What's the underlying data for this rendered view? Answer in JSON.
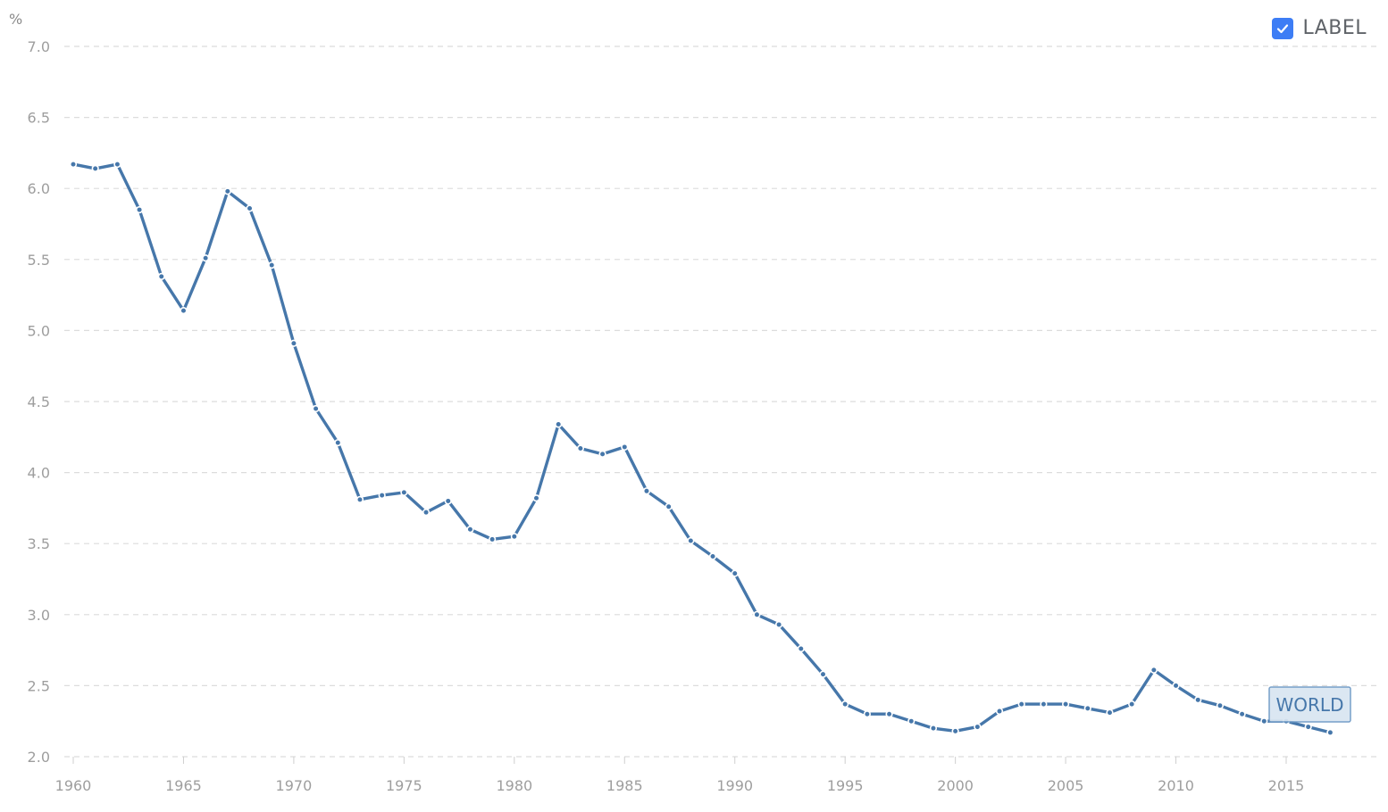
{
  "legend": {
    "label": "LABEL",
    "checked": true,
    "icon": "check-icon",
    "color": "#3d7df5"
  },
  "chart_data": {
    "type": "line",
    "unit_label": "%",
    "ylim": [
      2.0,
      7.0
    ],
    "yticks": [
      2.0,
      2.5,
      3.0,
      3.5,
      4.0,
      4.5,
      5.0,
      5.5,
      6.0,
      6.5,
      7.0
    ],
    "ytick_labels": [
      "2.0",
      "2.5",
      "3.0",
      "3.5",
      "4.0",
      "4.5",
      "5.0",
      "5.5",
      "6.0",
      "6.5",
      "7.0"
    ],
    "xlim": [
      1960,
      2019
    ],
    "xticks": [
      1960,
      1965,
      1970,
      1975,
      1980,
      1985,
      1990,
      1995,
      2000,
      2005,
      2010,
      2015
    ],
    "xtick_labels": [
      "1960",
      "1965",
      "1970",
      "1975",
      "1980",
      "1985",
      "1990",
      "1995",
      "2000",
      "2005",
      "2010",
      "2015"
    ],
    "grid": true,
    "legend_position": "top-right",
    "series": [
      {
        "name": "WORLD",
        "color": "#4677aa",
        "x": [
          1960,
          1961,
          1962,
          1963,
          1964,
          1965,
          1966,
          1967,
          1968,
          1969,
          1970,
          1971,
          1972,
          1973,
          1974,
          1975,
          1976,
          1977,
          1978,
          1979,
          1980,
          1981,
          1982,
          1983,
          1984,
          1985,
          1986,
          1987,
          1988,
          1989,
          1990,
          1991,
          1992,
          1993,
          1994,
          1995,
          1996,
          1997,
          1998,
          1999,
          2000,
          2001,
          2002,
          2003,
          2004,
          2005,
          2006,
          2007,
          2008,
          2009,
          2010,
          2011,
          2012,
          2013,
          2014,
          2015,
          2016,
          2017
        ],
        "values": [
          6.17,
          6.14,
          6.17,
          5.85,
          5.38,
          5.14,
          5.51,
          5.98,
          5.86,
          5.46,
          4.91,
          4.45,
          4.21,
          3.81,
          3.84,
          3.86,
          3.72,
          3.8,
          3.6,
          3.53,
          3.55,
          3.82,
          4.34,
          4.17,
          4.13,
          4.18,
          3.87,
          3.76,
          3.52,
          3.41,
          3.29,
          3.0,
          2.93,
          2.76,
          2.58,
          2.37,
          2.3,
          2.3,
          2.25,
          2.2,
          2.18,
          2.21,
          2.32,
          2.37,
          2.37,
          2.37,
          2.34,
          2.31,
          2.37,
          2.61,
          2.5,
          2.4,
          2.36,
          2.3,
          2.25,
          2.25,
          2.21,
          2.17
        ]
      }
    ]
  }
}
